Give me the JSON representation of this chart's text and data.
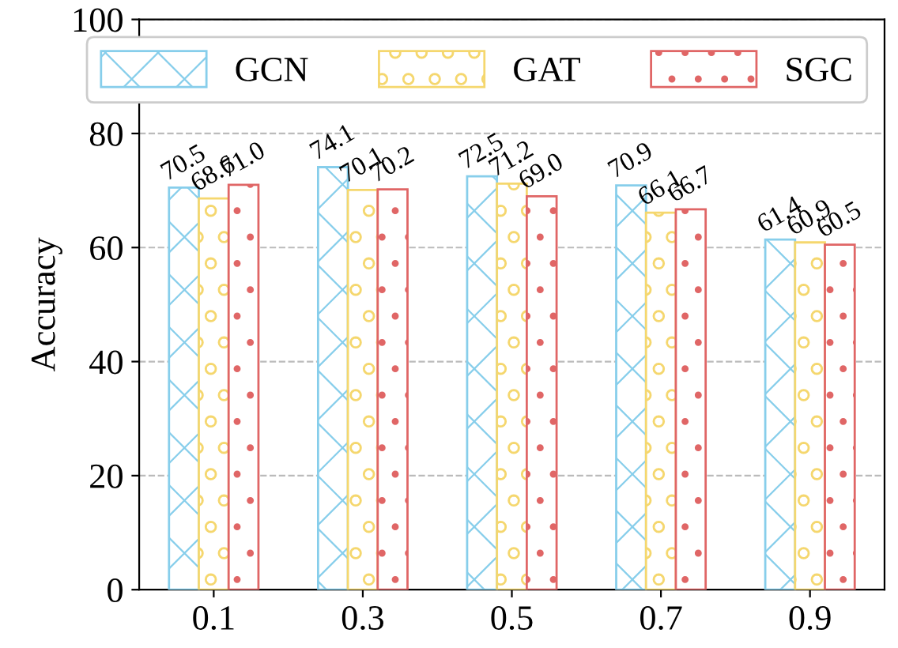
{
  "chart_data": {
    "type": "bar",
    "ylabel": "Accuracy",
    "categories": [
      "0.1",
      "0.3",
      "0.5",
      "0.7",
      "0.9"
    ],
    "series": [
      {
        "name": "GCN",
        "color": "#87ceeb",
        "values": [
          70.5,
          74.1,
          72.5,
          70.9,
          61.4
        ],
        "value_labels": [
          "70.5",
          "74.1",
          "72.5",
          "70.9",
          "61.4"
        ]
      },
      {
        "name": "GAT",
        "color": "#f5d76e",
        "values": [
          68.6,
          70.1,
          71.2,
          66.1,
          60.9
        ],
        "value_labels": [
          "68.6",
          "70.1",
          "71.2",
          "66.1",
          "60.9"
        ]
      },
      {
        "name": "SGC",
        "color": "#e06666",
        "values": [
          71.0,
          70.2,
          69.0,
          66.7,
          60.5
        ],
        "value_labels": [
          "71.0",
          "70.2",
          "69.0",
          "66.7",
          "60.5"
        ]
      }
    ],
    "ylim": [
      0,
      100
    ],
    "yticks": [
      0,
      20,
      40,
      60,
      80,
      100
    ],
    "grid": "y",
    "legend": "top right"
  }
}
